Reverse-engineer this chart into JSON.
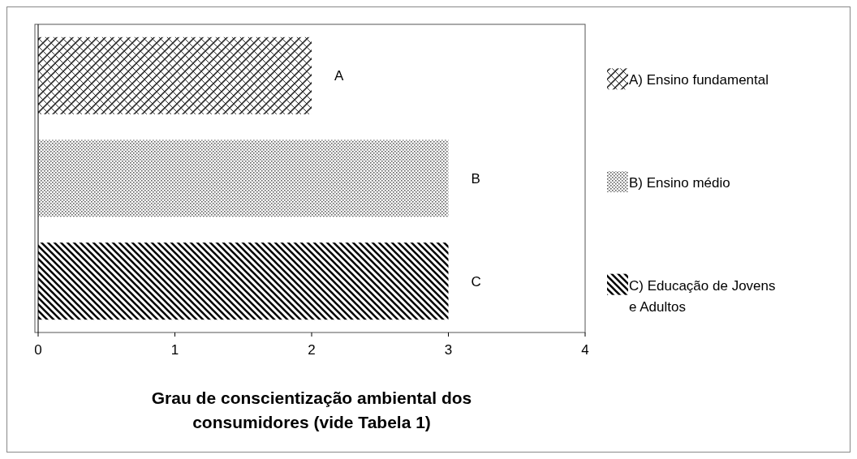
{
  "chart_data": {
    "type": "bar",
    "orientation": "horizontal",
    "xlabel": "Grau de conscientização ambiental dos consumidores (vide Tabela 1)",
    "categories": [
      null,
      null,
      null
    ],
    "series": [
      {
        "name": "A) Ensino fundamental",
        "color": "#303030",
        "values": [
          2,
          null,
          null
        ],
        "value_labels": [
          "A",
          null,
          null
        ]
      },
      {
        "name": "B) Ensino médio",
        "color": "#606060",
        "values": [
          null,
          3,
          null
        ],
        "value_labels": [
          null,
          "B",
          null
        ]
      },
      {
        "name": "C) Educação de Jovens e Adultos",
        "color": "#000000",
        "values": [
          null,
          null,
          3
        ],
        "value_labels": [
          null,
          null,
          "C"
        ]
      }
    ],
    "xlim": [
      0,
      4
    ],
    "xticks": [
      0,
      1,
      2,
      3,
      4
    ],
    "legend": "right",
    "grid": false
  }
}
